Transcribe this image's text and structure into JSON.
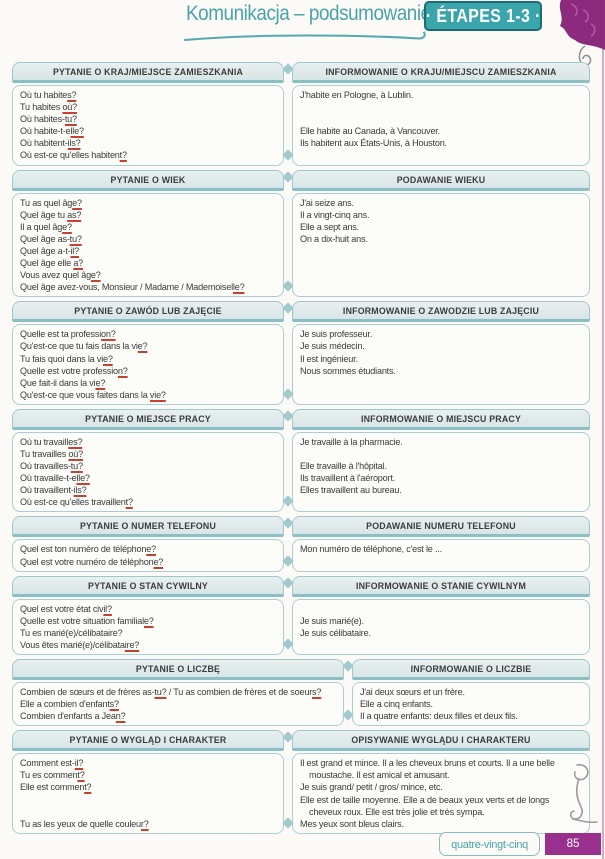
{
  "page": {
    "title": "Komunikacja – podsumowanie",
    "badge": "· ÉTAPES 1-3 ·",
    "footer_text": "quatre-vingt-cinq",
    "page_number": "85"
  },
  "colors": {
    "teal_accent": "#3aa6ac",
    "teal_text": "#4aa3ab",
    "header_bar_bg": "#dfe9e9",
    "header_bar_edge": "#8cbfc4",
    "box_border": "#abced2",
    "body_text": "#3a3a3a",
    "red_underline": "#c8402f",
    "purple_accent": "#8c2a7d",
    "page_number_bg": "#99308e"
  },
  "sections": [
    {
      "id": "residence",
      "wide_left": false,
      "left": {
        "header": "PYTANIE O KRAJ/MIEJSCE ZAMIESZKANIA",
        "lines": [
          {
            "segs": [
              {
                "t": "Où tu habite"
              },
              {
                "t": "s?",
                "ul": true
              }
            ]
          },
          {
            "segs": [
              {
                "t": "Tu habites "
              },
              {
                "t": "où?",
                "ul": true
              }
            ]
          },
          {
            "segs": [
              {
                "t": "Où habites-"
              },
              {
                "t": "tu?",
                "ul": true
              }
            ]
          },
          {
            "segs": [
              {
                "t": "Où habite-t-e"
              },
              {
                "t": "lle?",
                "ul": true
              }
            ]
          },
          {
            "segs": [
              {
                "t": "Où habitent-"
              },
              {
                "t": "ils?",
                "ul": true
              }
            ]
          },
          {
            "segs": [
              {
                "t": "Où est-ce qu'elles habiten"
              },
              {
                "t": "t?",
                "ul": true
              }
            ]
          }
        ]
      },
      "right": {
        "header": "INFORMOWANIE O KRAJU/MIEJSCU ZAMIESZKANIA",
        "lines": [
          {
            "segs": [
              {
                "t": "J'habite en Pologne, à Lublin."
              }
            ]
          },
          {
            "segs": []
          },
          {
            "segs": []
          },
          {
            "segs": [
              {
                "t": "Elle habite au Canada, à Vancouver."
              }
            ]
          },
          {
            "segs": [
              {
                "t": "Ils habitent aux États-Unis, à Houston."
              }
            ]
          }
        ]
      }
    },
    {
      "id": "age",
      "wide_left": false,
      "left": {
        "header": "PYTANIE O WIEK",
        "lines": [
          {
            "segs": [
              {
                "t": "Tu as quel âg"
              },
              {
                "t": "e?",
                "ul": true
              }
            ]
          },
          {
            "segs": [
              {
                "t": "Quel âge tu "
              },
              {
                "t": "as?",
                "ul": true
              }
            ]
          },
          {
            "segs": [
              {
                "t": "Il a quel âg"
              },
              {
                "t": "e?",
                "ul": true
              }
            ]
          },
          {
            "segs": [
              {
                "t": "Quel âge as-"
              },
              {
                "t": "tu?",
                "ul": true
              }
            ]
          },
          {
            "segs": [
              {
                "t": "Quel âge a-t-"
              },
              {
                "t": "il?",
                "ul": true
              }
            ]
          },
          {
            "segs": [
              {
                "t": "Quel âge elle "
              },
              {
                "t": "a?",
                "ul": true
              }
            ]
          },
          {
            "segs": [
              {
                "t": "Vous avez quel âg"
              },
              {
                "t": "e?",
                "ul": true
              }
            ]
          },
          {
            "segs": [
              {
                "t": "Quel âge avez-vous, Monsieur / Madame / Mademoisel"
              },
              {
                "t": "le?",
                "ul": true
              }
            ]
          }
        ]
      },
      "right": {
        "header": "PODAWANIE WIEKU",
        "lines": [
          {
            "segs": [
              {
                "t": "J'ai seize ans."
              }
            ]
          },
          {
            "segs": [
              {
                "t": "Il a vingt-cinq ans."
              }
            ]
          },
          {
            "segs": [
              {
                "t": "Elle a sept ans."
              }
            ]
          },
          {
            "segs": [
              {
                "t": "On a dix-huit ans."
              }
            ]
          }
        ]
      }
    },
    {
      "id": "profession",
      "wide_left": false,
      "left": {
        "header": "PYTANIE O ZAWÓD LUB ZAJĘCIE",
        "lines": [
          {
            "segs": [
              {
                "t": "Quelle est ta professi"
              },
              {
                "t": "on?",
                "ul": true
              }
            ]
          },
          {
            "segs": [
              {
                "t": "Qu'est-ce que tu fais dans la vi"
              },
              {
                "t": "e?",
                "ul": true
              }
            ]
          },
          {
            "segs": [
              {
                "t": "Tu fais quoi dans la vi"
              },
              {
                "t": "e?",
                "ul": true
              }
            ]
          },
          {
            "segs": [
              {
                "t": "Quelle est votre professio"
              },
              {
                "t": "n?",
                "ul": true
              }
            ]
          },
          {
            "segs": [
              {
                "t": "Que fait-il dans la vi"
              },
              {
                "t": "e?",
                "ul": true
              }
            ]
          },
          {
            "segs": [
              {
                "t": "Qu'est-ce que vous faites dans la "
              },
              {
                "t": "vie?",
                "ul": true
              }
            ]
          }
        ]
      },
      "right": {
        "header": "INFORMOWANIE O ZAWODZIE LUB ZAJĘCIU",
        "lines": [
          {
            "segs": [
              {
                "t": "Je suis professeur."
              }
            ]
          },
          {
            "segs": [
              {
                "t": "Je suis médecin."
              }
            ]
          },
          {
            "segs": [
              {
                "t": "Il est ingénieur."
              }
            ]
          },
          {
            "segs": [
              {
                "t": "Nous sommes étudiants."
              }
            ]
          }
        ]
      }
    },
    {
      "id": "workplace",
      "wide_left": false,
      "left": {
        "header": "PYTANIE O MIEJSCE PRACY",
        "lines": [
          {
            "segs": [
              {
                "t": "Où tu travaill"
              },
              {
                "t": "es?",
                "ul": true
              }
            ]
          },
          {
            "segs": [
              {
                "t": "Tu travailles "
              },
              {
                "t": "où?",
                "ul": true
              }
            ]
          },
          {
            "segs": [
              {
                "t": "Où travailles-"
              },
              {
                "t": "tu?",
                "ul": true
              }
            ]
          },
          {
            "segs": [
              {
                "t": "Où travaille-t-e"
              },
              {
                "t": "lle?",
                "ul": true
              }
            ]
          },
          {
            "segs": [
              {
                "t": "Où travaillent-"
              },
              {
                "t": "ils?",
                "ul": true
              }
            ]
          },
          {
            "segs": [
              {
                "t": "Où est-ce qu'elles travaillen"
              },
              {
                "t": "t?",
                "ul": true
              }
            ]
          }
        ]
      },
      "right": {
        "header": "INFORMOWANIE O MIEJSCU PRACY",
        "lines": [
          {
            "segs": [
              {
                "t": "Je travaille à la pharmacie."
              }
            ]
          },
          {
            "segs": []
          },
          {
            "segs": [
              {
                "t": "Elle travaille à l'hôpital."
              }
            ]
          },
          {
            "segs": [
              {
                "t": "Ils travaillent à l'aéroport."
              }
            ]
          },
          {
            "segs": [
              {
                "t": "Elles travaillent au bureau."
              }
            ]
          }
        ]
      }
    },
    {
      "id": "phone",
      "wide_left": false,
      "left": {
        "header": "PYTANIE O NUMER TELEFONU",
        "lines": [
          {
            "segs": [
              {
                "t": "Quel est ton numéro de téléphon"
              },
              {
                "t": "e?",
                "ul": true
              }
            ]
          },
          {
            "segs": [
              {
                "t": "Quel est votre numéro de téléphon"
              },
              {
                "t": "e?",
                "ul": true
              }
            ]
          }
        ]
      },
      "right": {
        "header": "PODAWANIE NUMERU TELEFONU",
        "lines": [
          {
            "segs": [
              {
                "t": "Mon numéro de téléphone, c'est le ..."
              }
            ]
          }
        ]
      }
    },
    {
      "id": "marital-status",
      "wide_left": false,
      "left": {
        "header": "PYTANIE O STAN CYWILNY",
        "lines": [
          {
            "segs": [
              {
                "t": "Quel est votre état civ"
              },
              {
                "t": "il?",
                "ul": true
              }
            ]
          },
          {
            "segs": [
              {
                "t": "Quelle est votre situation familial"
              },
              {
                "t": "e?",
                "ul": true
              }
            ]
          },
          {
            "segs": [
              {
                "t": "Tu es marié(e)/célibataire?"
              }
            ]
          },
          {
            "segs": [
              {
                "t": "Vous êtes marié(e)/célibata"
              },
              {
                "t": "ire?",
                "ul": true
              }
            ]
          }
        ]
      },
      "right": {
        "header": "INFORMOWANIE O STANIE CYWILNYM",
        "lines": [
          {
            "segs": []
          },
          {
            "segs": [
              {
                "t": "Je suis marié(e)."
              }
            ]
          },
          {
            "segs": [
              {
                "t": "Je suis célibataire."
              }
            ]
          }
        ]
      }
    },
    {
      "id": "number",
      "wide_left": true,
      "left": {
        "header": "PYTANIE O LICZBĘ",
        "lines": [
          {
            "segs": [
              {
                "t": "Combien de sœurs et de frères as-"
              },
              {
                "t": "tu?",
                "ul": true
              },
              {
                "t": " / Tu as combien de frères et de soeur"
              },
              {
                "t": "s?",
                "ul": true
              }
            ]
          },
          {
            "segs": [
              {
                "t": "Elle a combien d'enfant"
              },
              {
                "t": "s?",
                "ul": true
              }
            ]
          },
          {
            "segs": [
              {
                "t": "Combien d'enfants a Jea"
              },
              {
                "t": "n?",
                "ul": true
              }
            ]
          }
        ]
      },
      "right": {
        "header": "INFORMOWANIE O LICZBIE",
        "lines": [
          {
            "segs": [
              {
                "t": "J'ai deux sœurs et un frère."
              }
            ]
          },
          {
            "segs": [
              {
                "t": "Elle a cinq enfants."
              }
            ]
          },
          {
            "segs": [
              {
                "t": "Il a quatre enfants: deux filles et deux fils."
              }
            ]
          }
        ]
      }
    },
    {
      "id": "appearance",
      "wide_left": false,
      "left": {
        "header": "PYTANIE O WYGLĄD I CHARAKTER",
        "lines": [
          {
            "segs": [
              {
                "t": "Comment est-"
              },
              {
                "t": "il?",
                "ul": true
              }
            ]
          },
          {
            "segs": [
              {
                "t": "Tu es commen"
              },
              {
                "t": "t?",
                "ul": true
              }
            ]
          },
          {
            "segs": [
              {
                "t": "Elle est commen"
              },
              {
                "t": "t?",
                "ul": true
              }
            ]
          },
          {
            "segs": []
          },
          {
            "segs": []
          },
          {
            "segs": [
              {
                "t": "Tu as les yeux de quelle couleu"
              },
              {
                "t": "r?",
                "ul": true
              }
            ]
          }
        ]
      },
      "right": {
        "header": "OPISYWANIE WYGLĄDU I CHARAKTERU",
        "lines": [
          {
            "segs": [
              {
                "t": "Il est grand et mince. Il a les cheveux bruns et courts. Il a une belle"
              }
            ]
          },
          {
            "ind": true,
            "segs": [
              {
                "t": "moustache. Il est amical et amusant."
              }
            ]
          },
          {
            "segs": [
              {
                "t": "Je suis grand/ petit / gros/ mince, etc."
              }
            ]
          },
          {
            "segs": [
              {
                "t": "Elle est de taille moyenne. Elle a de beaux yeux verts et de longs"
              }
            ]
          },
          {
            "ind": true,
            "segs": [
              {
                "t": "cheveux roux. Elle est très jolie et très sympa."
              }
            ]
          },
          {
            "segs": [
              {
                "t": "Mes yeux sont bleus clairs."
              }
            ]
          }
        ]
      }
    }
  ]
}
